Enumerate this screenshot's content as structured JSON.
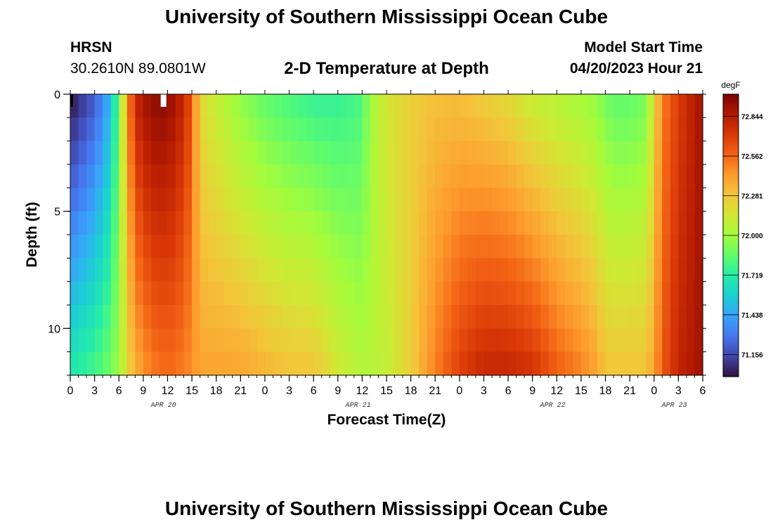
{
  "header": {
    "title": "University of Southern Mississippi Ocean Cube",
    "station": "HRSN",
    "coords": "30.2610N  89.0801W",
    "subtitle": "2-D Temperature at Depth",
    "model_start_label": "Model Start Time",
    "model_start_value": "04/20/2023 Hour 21"
  },
  "footer": {
    "title": "University of Southern Mississippi Ocean Cube"
  },
  "colors": {
    "palette": [
      "#30123b",
      "#4145ab",
      "#4675ed",
      "#39a2fc",
      "#1bcfd4",
      "#24eca6",
      "#61fc6c",
      "#a4fc3b",
      "#d1e834",
      "#f3c63a",
      "#fe9b2d",
      "#f36315",
      "#d93806",
      "#b11901",
      "#7a0403"
    ],
    "markers": [
      "#000000",
      "#ffffff"
    ]
  },
  "chart_data": {
    "type": "heatmap",
    "xlabel": "Forecast Time(Z)",
    "ylabel": "Depth (ft)",
    "x_range_hours": [
      0,
      78
    ],
    "y_range_ft": [
      0,
      12
    ],
    "x_ticks": [
      {
        "h": 0,
        "label": "0"
      },
      {
        "h": 3,
        "label": "3"
      },
      {
        "h": 6,
        "label": "6"
      },
      {
        "h": 9,
        "label": "9"
      },
      {
        "h": 12,
        "label": "12"
      },
      {
        "h": 15,
        "label": "15"
      },
      {
        "h": 18,
        "label": "18"
      },
      {
        "h": 21,
        "label": "21"
      },
      {
        "h": 24,
        "label": "0"
      },
      {
        "h": 27,
        "label": "3"
      },
      {
        "h": 30,
        "label": "6"
      },
      {
        "h": 33,
        "label": "9"
      },
      {
        "h": 36,
        "label": "12"
      },
      {
        "h": 39,
        "label": "15"
      },
      {
        "h": 42,
        "label": "18"
      },
      {
        "h": 45,
        "label": "21"
      },
      {
        "h": 48,
        "label": "0"
      },
      {
        "h": 51,
        "label": "3"
      },
      {
        "h": 54,
        "label": "6"
      },
      {
        "h": 57,
        "label": "9"
      },
      {
        "h": 60,
        "label": "12"
      },
      {
        "h": 63,
        "label": "15"
      },
      {
        "h": 66,
        "label": "18"
      },
      {
        "h": 69,
        "label": "21"
      },
      {
        "h": 72,
        "label": "0"
      },
      {
        "h": 75,
        "label": "3"
      },
      {
        "h": 78,
        "label": "6"
      }
    ],
    "date_labels": [
      {
        "h": 11.5,
        "label": "APR 20"
      },
      {
        "h": 35.5,
        "label": "APR 21"
      },
      {
        "h": 59.5,
        "label": "APR 22"
      },
      {
        "h": 74.5,
        "label": "APR 23"
      }
    ],
    "y_ticks": [
      {
        "v": 0,
        "label": "0"
      },
      {
        "v": 5,
        "label": "5"
      },
      {
        "v": 10,
        "label": "10"
      }
    ],
    "y_minor_step": 1,
    "x_minor_step": 1,
    "depth_levels": 12,
    "hours_step": 1,
    "colorbar": {
      "unit": "degF",
      "min": 71.0,
      "max": 73.0,
      "ticks": [
        "72.844",
        "72.562",
        "72.281",
        "72.000",
        "71.719",
        "71.438",
        "71.156"
      ]
    },
    "temperature_profile": {
      "description_keys": [
        "hour",
        "surface_degF",
        "bottom_degF"
      ],
      "points": [
        [
          0,
          71.0,
          71.7
        ],
        [
          3,
          71.2,
          71.8
        ],
        [
          5,
          71.5,
          71.9
        ],
        [
          6,
          71.9,
          72.0
        ],
        [
          7,
          72.4,
          72.2
        ],
        [
          8,
          72.8,
          72.35
        ],
        [
          10,
          72.95,
          72.5
        ],
        [
          12,
          72.95,
          72.55
        ],
        [
          14,
          72.8,
          72.5
        ],
        [
          15,
          72.6,
          72.45
        ],
        [
          16,
          72.2,
          72.4
        ],
        [
          18,
          72.1,
          72.4
        ],
        [
          21,
          71.95,
          72.4
        ],
        [
          24,
          71.85,
          72.35
        ],
        [
          27,
          71.8,
          72.3
        ],
        [
          30,
          71.75,
          72.3
        ],
        [
          33,
          71.75,
          72.15
        ],
        [
          36,
          71.8,
          72.05
        ],
        [
          37,
          72.0,
          72.05
        ],
        [
          39,
          72.15,
          72.1
        ],
        [
          42,
          72.25,
          72.25
        ],
        [
          45,
          72.3,
          72.5
        ],
        [
          48,
          72.3,
          72.7
        ],
        [
          51,
          72.25,
          72.8
        ],
        [
          54,
          72.2,
          72.8
        ],
        [
          57,
          72.1,
          72.75
        ],
        [
          60,
          72.05,
          72.6
        ],
        [
          63,
          72.0,
          72.5
        ],
        [
          65,
          71.95,
          72.4
        ],
        [
          66,
          71.9,
          72.3
        ],
        [
          67,
          71.85,
          72.3
        ],
        [
          69,
          71.85,
          72.3
        ],
        [
          71,
          71.9,
          72.3
        ],
        [
          72,
          72.2,
          72.4
        ],
        [
          73,
          72.5,
          72.6
        ],
        [
          75,
          72.7,
          72.8
        ],
        [
          78,
          72.9,
          72.9
        ]
      ]
    },
    "current_time_hour": 11.5,
    "start_marker_hour": 0
  }
}
